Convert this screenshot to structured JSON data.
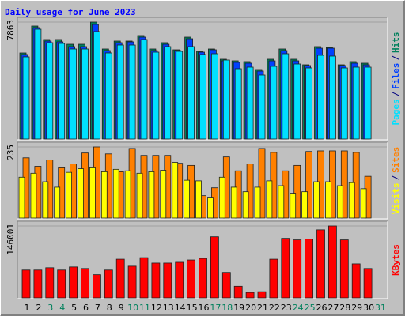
{
  "chart_data": [
    {
      "type": "bar",
      "title": "Daily usage for June 2023",
      "title_color": "#0000ff",
      "ylim": [
        0,
        7863
      ],
      "yticks": [
        7863
      ],
      "legend_separator": "/",
      "series": [
        {
          "name": "Hits",
          "color": "#00805c",
          "values": [
            5791,
            7597,
            6694,
            6694,
            6375,
            6375,
            7863,
            6057,
            6588,
            6588,
            6960,
            6057,
            6482,
            6003,
            6853,
            5897,
            6057,
            5366,
            5260,
            5207,
            4675,
            5366,
            6057,
            5366,
            4994,
            6216,
            6163,
            4994,
            5207,
            5100,
            null
          ]
        },
        {
          "name": "Files",
          "color": "#0040ff",
          "values": [
            5685,
            7491,
            6588,
            6535,
            6216,
            6216,
            7704,
            5950,
            6482,
            6535,
            6854,
            5950,
            6376,
            5950,
            6747,
            5844,
            6004,
            5260,
            5154,
            5100,
            4569,
            5260,
            5950,
            5260,
            4941,
            6110,
            6110,
            4941,
            5100,
            4994,
            null
          ]
        },
        {
          "name": "Pages",
          "color": "#00e0ff",
          "values": [
            5526,
            7385,
            6482,
            6429,
            6057,
            6057,
            7226,
            5791,
            6322,
            6322,
            6694,
            5844,
            6216,
            5897,
            6216,
            5685,
            5738,
            5313,
            4729,
            4835,
            4304,
            4888,
            5738,
            5047,
            4782,
            5632,
            5579,
            4782,
            4835,
            4835,
            null
          ]
        }
      ]
    },
    {
      "type": "bar",
      "ylim": [
        0,
        235
      ],
      "yticks": [
        235
      ],
      "legend_separator": "/",
      "series": [
        {
          "name": "Sites",
          "color": "#ff8000",
          "values": [
            199,
            171,
            192,
            166,
            179,
            215,
            235,
            212,
            153,
            230,
            207,
            207,
            207,
            181,
            174,
            74,
            100,
            202,
            156,
            179,
            230,
            217,
            156,
            174,
            220,
            222,
            222,
            222,
            217,
            138,
            null
          ]
        },
        {
          "name": "Visits",
          "color": "#ffff00",
          "values": [
            135,
            148,
            120,
            102,
            151,
            163,
            166,
            153,
            161,
            156,
            148,
            153,
            158,
            184,
            125,
            123,
            69,
            135,
            102,
            87,
            102,
            123,
            107,
            82,
            87,
            120,
            120,
            107,
            117,
            97,
            null
          ]
        }
      ]
    },
    {
      "type": "bar",
      "ylim": [
        0,
        146001
      ],
      "yticks": [
        146001
      ],
      "categories": [
        "1",
        "2",
        "3",
        "4",
        "5",
        "6",
        "7",
        "8",
        "9",
        "10",
        "11",
        "12",
        "13",
        "14",
        "15",
        "16",
        "17",
        "18",
        "19",
        "20",
        "21",
        "22",
        "23",
        "24",
        "25",
        "26",
        "27",
        "28",
        "29",
        "30",
        "31"
      ],
      "category_colors": [
        "#000000",
        "#000000",
        "#00805c",
        "#00805c",
        "#000000",
        "#000000",
        "#000000",
        "#000000",
        "#000000",
        "#00805c",
        "#00805c",
        "#000000",
        "#000000",
        "#000000",
        "#000000",
        "#000000",
        "#00805c",
        "#00805c",
        "#000000",
        "#000000",
        "#000000",
        "#000000",
        "#000000",
        "#00805c",
        "#00805c",
        "#000000",
        "#000000",
        "#000000",
        "#000000",
        "#000000",
        "#00805c"
      ],
      "series": [
        {
          "name": "KBytes",
          "color": "#ff0000",
          "values": [
            56520,
            56520,
            61230,
            56520,
            62800,
            59660,
            47100,
            56520,
            78500,
            64370,
            81640,
            70650,
            70650,
            72220,
            76930,
            80070,
            124030,
            51810,
            23550,
            10990,
            12560,
            78500,
            120890,
            117750,
            119320,
            138160,
            146001,
            117750,
            69080,
            59660,
            null
          ]
        }
      ]
    }
  ]
}
